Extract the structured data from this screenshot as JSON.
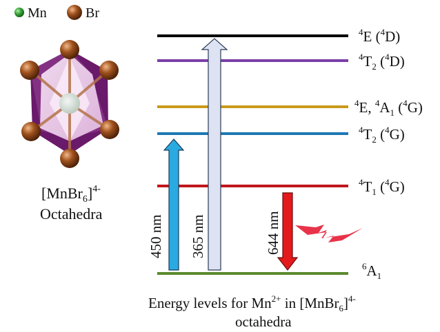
{
  "legend": {
    "items": [
      {
        "label": "Mn",
        "color": "#3aa83a"
      },
      {
        "label": "Br",
        "color": "#a0521d"
      }
    ]
  },
  "octahedron": {
    "label_base": "[MnBr",
    "label_sub": "6",
    "label_close": "]",
    "label_sup": "4-",
    "label_line2": "Octahedra",
    "colors": {
      "face": "#6a1a6a",
      "light_face": "#f1d6f0",
      "bond": "#a0521d"
    }
  },
  "levels": [
    {
      "id": "4E_4D",
      "color": "#000000",
      "label": {
        "sup1": "4",
        "main": "E (",
        "sup2": "4",
        "tail": "D)"
      }
    },
    {
      "id": "4T2_4D",
      "color": "#7b3fa8",
      "label": {
        "sup1": "4",
        "main": "T",
        "sub": "2",
        "mid": " (",
        "sup2": "4",
        "tail": "D)"
      }
    },
    {
      "id": "4E4A1_4G",
      "color": "#c99a1a",
      "label": {
        "sup1": "4",
        "main": "E, ",
        "sup1b": "4",
        "main2": "A",
        "sub": "1",
        "mid": " (",
        "sup2": "4",
        "tail": "G)"
      }
    },
    {
      "id": "4T2_4G",
      "color": "#1f78b4",
      "label": {
        "sup1": "4",
        "main": "T",
        "sub": "2",
        "mid": " (",
        "sup2": "4",
        "tail": "G)"
      }
    },
    {
      "id": "4T1_4G",
      "color": "#c0171c",
      "label": {
        "sup1": "4",
        "main": "T",
        "sub": "1",
        "mid": " (",
        "sup2": "4",
        "tail": "G)"
      }
    },
    {
      "id": "6A1",
      "color": "#5a8a2e",
      "label": {
        "sup1": "6",
        "main": "A",
        "sub": "1"
      }
    }
  ],
  "arrows": [
    {
      "id": "arrow-450",
      "label": "450 nm",
      "color": "#29aae1",
      "direction": "up"
    },
    {
      "id": "arrow-365",
      "label": "365 nm",
      "color": "#dde3f2",
      "direction": "up"
    },
    {
      "id": "arrow-644",
      "label": "644 nm",
      "color": "#e31a1c",
      "direction": "down"
    }
  ],
  "caption": {
    "line1_pre": "Energy levels for Mn",
    "line1_sup": "2+",
    "line1_mid": " in [MnBr",
    "line1_sub": "6",
    "line1_close": "]",
    "line1_sup2": "4-",
    "line2": "octahedra"
  },
  "emission_color": "#e8334a"
}
